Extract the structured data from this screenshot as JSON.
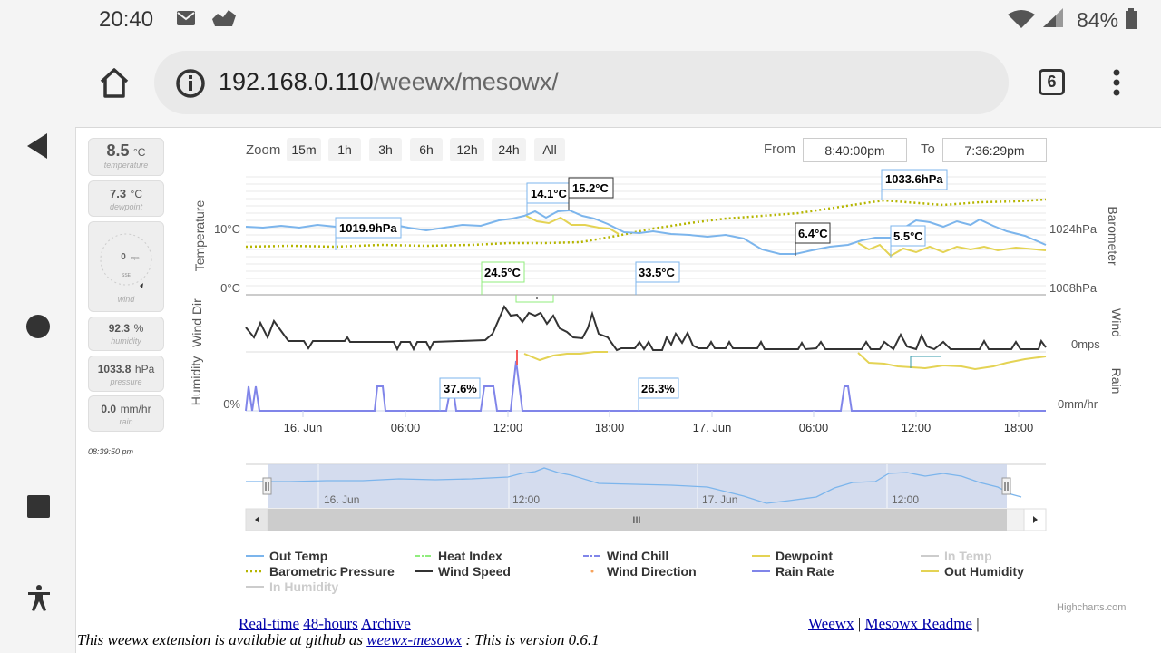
{
  "status_bar": {
    "time": "20:40",
    "battery": "84%"
  },
  "browser": {
    "url_host": "192.168.0.110",
    "url_path": "/weewx/mesowx/",
    "tab_count": "6"
  },
  "summary": [
    {
      "value": "8.5",
      "unit": "°C",
      "label": "temperature"
    },
    {
      "value": "7.3",
      "unit": "°C",
      "label": "dewpoint"
    },
    {
      "value": "0",
      "unit": "mps",
      "label": "wind",
      "direction": "SSE"
    },
    {
      "value": "92.3",
      "unit": "%",
      "label": "humidity"
    },
    {
      "value": "1033.8",
      "unit": "hPa",
      "label": "pressure"
    },
    {
      "value": "0.0",
      "unit": "mm/hr",
      "label": "rain"
    }
  ],
  "summary_time": "08:39:50 pm",
  "controls": {
    "zoom_label": "Zoom",
    "zoom_buttons": [
      "15m",
      "1h",
      "3h",
      "6h",
      "12h",
      "24h",
      "All"
    ],
    "from_label": "From",
    "from_value": "8:40:00pm",
    "to_label": "To",
    "to_value": "7:36:29pm"
  },
  "axes": {
    "temperature_title": "Temperature",
    "temp_ticks": [
      "10°C",
      "0°C"
    ],
    "barometer_title": "Barometer",
    "baro_ticks": [
      "1024hPa",
      "1008hPa"
    ],
    "wind_dir_title": "Wind Dir",
    "wind_title": "Wind",
    "wind_tick": "0mps",
    "humidity_title": "Humidity",
    "humidity_tick": "0%",
    "rain_title": "Rain",
    "rain_tick": "0mm/hr",
    "time_labels": [
      "16. Jun",
      "06:00",
      "12:00",
      "18:00",
      "17. Jun",
      "06:00",
      "12:00",
      "18:00"
    ]
  },
  "annotations": [
    "1019.9hPa",
    "14.1°C",
    "15.2°C",
    "1033.6hPa",
    "6.4°C",
    "5.5°C",
    "24.5°C",
    "33.5°C",
    "37.6%",
    "26.3%"
  ],
  "navigator": {
    "labels": [
      "16. Jun",
      "12:00",
      "17. Jun",
      "12:00"
    ],
    "handle": "III"
  },
  "legend": [
    {
      "name": "Out Temp",
      "color": "#7cb5ec",
      "style": "solid"
    },
    {
      "name": "Heat Index",
      "color": "#90ed7d",
      "style": "dashdot"
    },
    {
      "name": "Wind Chill",
      "color": "#8085e9",
      "style": "dashdot"
    },
    {
      "name": "Dewpoint",
      "color": "#e4d354",
      "style": "solid"
    },
    {
      "name": "In Temp",
      "color": "#cccccc",
      "style": "solid",
      "hidden": true
    },
    {
      "name": "Barometric Pressure",
      "color": "#b5b500",
      "style": "dotted"
    },
    {
      "name": "Wind Speed",
      "color": "#333333",
      "style": "solid"
    },
    {
      "name": "Wind Direction",
      "color": "#f7a35c",
      "style": "dot"
    },
    {
      "name": "Rain Rate",
      "color": "#8085e9",
      "style": "solid"
    },
    {
      "name": "Out Humidity",
      "color": "#e4d354",
      "style": "solid"
    },
    {
      "name": "In Humidity",
      "color": "#cccccc",
      "style": "solid",
      "hidden": true
    }
  ],
  "credits": "Highcharts.com",
  "footer": {
    "links_left": [
      "Real-time",
      "48-hours",
      "Archive"
    ],
    "links_right": [
      "Weewx",
      "Mesowx Readme"
    ],
    "separator": "|",
    "info_prefix": "This weewx extension is available at github as",
    "info_link": "weewx-mesowx",
    "info_suffix": ": This is version 0.6.1"
  }
}
